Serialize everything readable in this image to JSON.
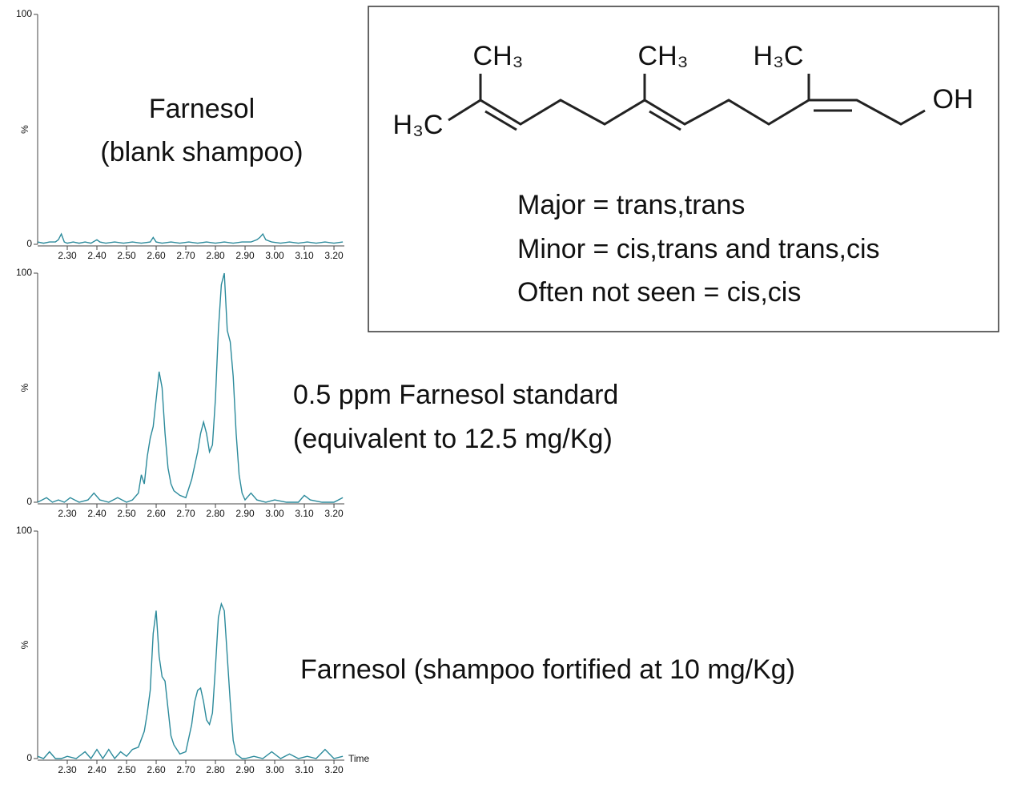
{
  "chart_data": [
    {
      "type": "line",
      "color": "#2b8a9b",
      "ylabel": "%",
      "annotations": [
        "Farnesol",
        "(blank shampoo)"
      ],
      "x": [
        2.2,
        2.22,
        2.24,
        2.26,
        2.27,
        2.28,
        2.29,
        2.3,
        2.32,
        2.34,
        2.36,
        2.38,
        2.4,
        2.41,
        2.43,
        2.46,
        2.49,
        2.52,
        2.55,
        2.58,
        2.59,
        2.6,
        2.62,
        2.65,
        2.68,
        2.71,
        2.74,
        2.77,
        2.8,
        2.83,
        2.86,
        2.89,
        2.92,
        2.94,
        2.95,
        2.96,
        2.97,
        2.99,
        3.02,
        3.05,
        3.08,
        3.11,
        3.14,
        3.17,
        3.2,
        3.23
      ],
      "values": [
        1,
        0.5,
        1,
        1,
        2,
        4.5,
        1,
        0.5,
        1,
        0.5,
        1,
        0.5,
        2,
        1,
        0.5,
        1,
        0.5,
        1,
        0.5,
        1,
        3,
        1,
        0.5,
        1,
        0.5,
        1,
        0.5,
        1,
        0.5,
        1,
        0.5,
        1,
        1,
        2,
        3,
        4.5,
        2,
        1,
        0.5,
        1,
        0.5,
        1,
        0.5,
        1,
        0.5,
        1
      ],
      "xlim": [
        2.2,
        3.235
      ],
      "ylim": [
        0,
        100
      ],
      "yticks": [
        0,
        100
      ],
      "xticks": [
        {
          "value": 2.3,
          "label": "2.30"
        },
        {
          "value": 2.4,
          "label": "2.40"
        },
        {
          "value": 2.5,
          "label": "2.50"
        },
        {
          "value": 2.6,
          "label": "2.60"
        },
        {
          "value": 2.7,
          "label": "2.70"
        },
        {
          "value": 2.8,
          "label": "2.80"
        },
        {
          "value": 2.9,
          "label": "2.90"
        },
        {
          "value": 3.0,
          "label": "3.00"
        },
        {
          "value": 3.1,
          "label": "3.10"
        },
        {
          "value": 3.2,
          "label": "3.20"
        }
      ]
    },
    {
      "type": "line",
      "color": "#2b8a9b",
      "ylabel": "%",
      "annotations": [
        "0.5 ppm Farnesol standard",
        "(equivalent to 12.5 mg/Kg)"
      ],
      "x": [
        2.2,
        2.23,
        2.25,
        2.27,
        2.29,
        2.31,
        2.34,
        2.37,
        2.39,
        2.41,
        2.44,
        2.47,
        2.5,
        2.52,
        2.54,
        2.55,
        2.56,
        2.57,
        2.58,
        2.59,
        2.6,
        2.61,
        2.62,
        2.63,
        2.64,
        2.65,
        2.66,
        2.68,
        2.7,
        2.72,
        2.74,
        2.75,
        2.76,
        2.77,
        2.78,
        2.79,
        2.8,
        2.81,
        2.82,
        2.83,
        2.84,
        2.85,
        2.86,
        2.87,
        2.88,
        2.89,
        2.9,
        2.92,
        2.94,
        2.97,
        3.0,
        3.04,
        3.08,
        3.1,
        3.12,
        3.16,
        3.2,
        3.23
      ],
      "values": [
        0,
        2,
        0,
        1,
        0,
        2,
        0,
        1,
        4,
        1,
        0,
        2,
        0,
        1,
        4,
        12,
        8,
        20,
        28,
        33,
        45,
        57,
        50,
        30,
        15,
        8,
        5,
        3,
        2,
        10,
        22,
        30,
        35,
        30,
        22,
        25,
        45,
        75,
        95,
        100,
        75,
        70,
        55,
        30,
        12,
        4,
        1,
        4,
        1,
        0,
        1,
        0,
        0,
        3,
        1,
        0,
        0,
        2
      ],
      "xlim": [
        2.2,
        3.235
      ],
      "ylim": [
        0,
        100
      ],
      "yticks": [
        0,
        100
      ],
      "xticks": [
        {
          "value": 2.3,
          "label": "2.30"
        },
        {
          "value": 2.4,
          "label": "2.40"
        },
        {
          "value": 2.5,
          "label": "2.50"
        },
        {
          "value": 2.6,
          "label": "2.60"
        },
        {
          "value": 2.7,
          "label": "2.70"
        },
        {
          "value": 2.8,
          "label": "2.80"
        },
        {
          "value": 2.9,
          "label": "2.90"
        },
        {
          "value": 3.0,
          "label": "3.00"
        },
        {
          "value": 3.1,
          "label": "3.10"
        },
        {
          "value": 3.2,
          "label": "3.20"
        }
      ]
    },
    {
      "type": "line",
      "color": "#2b8a9b",
      "ylabel": "%",
      "xlabel": "Time",
      "annotations": [
        "Farnesol (shampoo fortified at 10 mg/Kg)"
      ],
      "x": [
        2.2,
        2.22,
        2.24,
        2.26,
        2.28,
        2.3,
        2.33,
        2.36,
        2.38,
        2.4,
        2.42,
        2.44,
        2.46,
        2.48,
        2.5,
        2.52,
        2.54,
        2.56,
        2.57,
        2.58,
        2.59,
        2.6,
        2.61,
        2.62,
        2.63,
        2.64,
        2.65,
        2.66,
        2.67,
        2.68,
        2.7,
        2.72,
        2.73,
        2.74,
        2.75,
        2.76,
        2.77,
        2.78,
        2.79,
        2.8,
        2.81,
        2.82,
        2.83,
        2.84,
        2.85,
        2.86,
        2.87,
        2.88,
        2.89,
        2.9,
        2.93,
        2.96,
        2.99,
        3.02,
        3.05,
        3.08,
        3.11,
        3.14,
        3.17,
        3.2,
        3.23
      ],
      "values": [
        1,
        0,
        3,
        0,
        0,
        1,
        0,
        3,
        0,
        4,
        0,
        4,
        0,
        3,
        1,
        4,
        5,
        12,
        20,
        30,
        55,
        65,
        45,
        36,
        34,
        22,
        10,
        6,
        4,
        2,
        3,
        15,
        25,
        30,
        31,
        25,
        17,
        15,
        20,
        40,
        62,
        68,
        65,
        45,
        25,
        8,
        2,
        1,
        0,
        0,
        1,
        0,
        3,
        0,
        2,
        0,
        1,
        0,
        4,
        0,
        1
      ],
      "xlim": [
        2.2,
        3.235
      ],
      "ylim": [
        0,
        100
      ],
      "yticks": [
        0,
        100
      ],
      "xticks": [
        {
          "value": 2.3,
          "label": "2.30"
        },
        {
          "value": 2.4,
          "label": "2.40"
        },
        {
          "value": 2.5,
          "label": "2.50"
        },
        {
          "value": 2.6,
          "label": "2.60"
        },
        {
          "value": 2.7,
          "label": "2.70"
        },
        {
          "value": 2.8,
          "label": "2.80"
        },
        {
          "value": 2.9,
          "label": "2.90"
        },
        {
          "value": 3.0,
          "label": "3.00"
        },
        {
          "value": 3.1,
          "label": "3.10"
        },
        {
          "value": 3.2,
          "label": "3.20"
        }
      ]
    }
  ],
  "structure": {
    "atoms": [
      "CH₃",
      "CH₃",
      "H₃C",
      "H₃C",
      "OH"
    ],
    "notes": [
      "Major = trans,trans",
      "Minor = cis,trans and trans,cis",
      "Often not seen = cis,cis"
    ]
  }
}
